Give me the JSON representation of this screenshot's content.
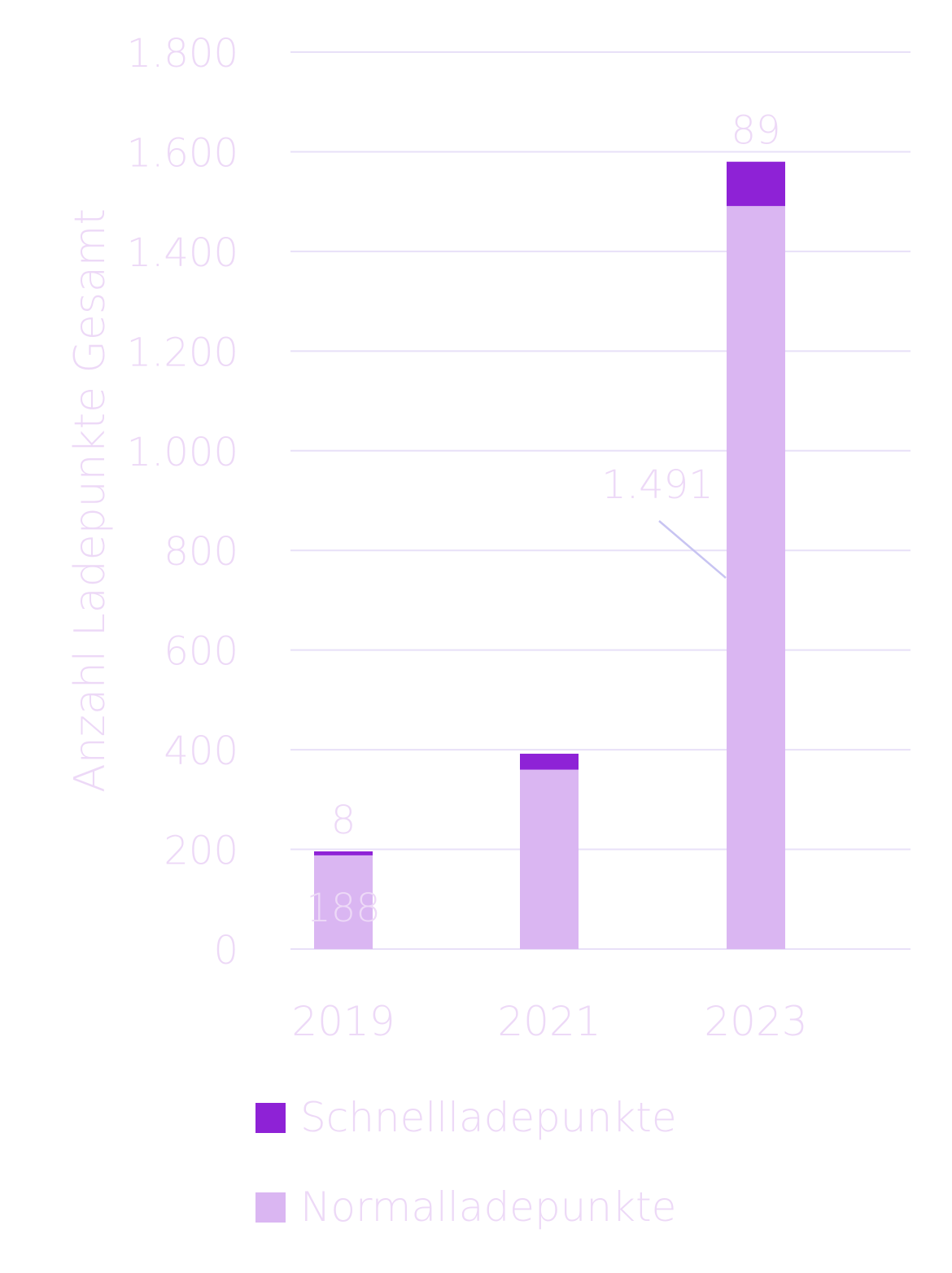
{
  "chart_data": {
    "type": "bar",
    "stacked": true,
    "categories": [
      "2019",
      "2021",
      "2023"
    ],
    "series": [
      {
        "name": "Normalladepunkte",
        "values": [
          188,
          360,
          1491
        ],
        "color": "#DAB6F2"
      },
      {
        "name": "Schnellladepunkte",
        "values": [
          8,
          32,
          89
        ],
        "color": "#8E22D6"
      }
    ],
    "ylabel": "Anzahl Ladepunkte Gesamt",
    "xlabel": "",
    "ylim": [
      0,
      1800
    ],
    "yticks": [
      0,
      200,
      400,
      600,
      800,
      1000,
      1200,
      1400,
      1600,
      1800
    ],
    "ytick_labels": [
      "0",
      "200",
      "400",
      "600",
      "800",
      "1.000",
      "1.200",
      "1.400",
      "1.600",
      "1.800"
    ],
    "data_labels": [
      {
        "category": "2019",
        "series": "Schnellladepunkte",
        "text": "8"
      },
      {
        "category": "2019",
        "series": "Normalladepunkte",
        "text": "188"
      },
      {
        "category": "2023",
        "series": "Schnellladepunkte",
        "text": "89"
      },
      {
        "category": "2023",
        "series": "Normalladepunkte",
        "text": "1.491"
      }
    ],
    "grid": true,
    "legend_position": "bottom-left",
    "text_color": "#EDD9F7",
    "grid_color": "#E8E0F8",
    "leader_color": "#C8C4F2"
  },
  "legend": {
    "items": [
      {
        "label": "Schnellladepunkte",
        "color": "#8E22D6"
      },
      {
        "label": "Normalladepunkte",
        "color": "#DAB6F2"
      }
    ]
  }
}
